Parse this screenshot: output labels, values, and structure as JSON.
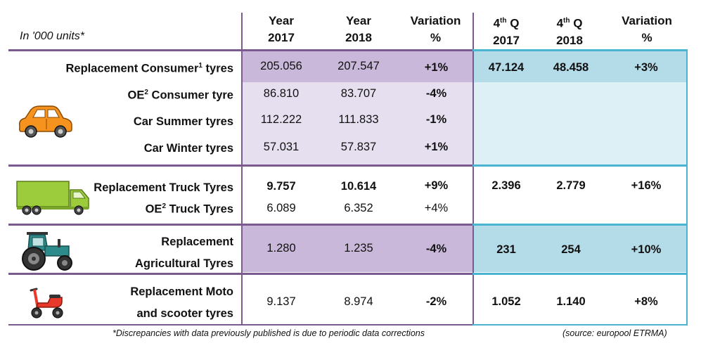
{
  "header": {
    "unit_label": "In '000 units*",
    "col1_line1": "Year",
    "col1_line2": "2017",
    "col2_line1": "Year",
    "col2_line2": "2018",
    "col3_line1": "Variation",
    "col3_line2": "%",
    "col4_line1": "4",
    "col4_sup": "th",
    "col4_line1b": " Q",
    "col4_line2": "2017",
    "col5_line1": "4",
    "col5_sup": "th",
    "col5_line1b": " Q",
    "col5_line2": "2018",
    "col6_line1": "Variation",
    "col6_line2": "%"
  },
  "rows": {
    "rep_consumer": {
      "label": "Replacement Consumer",
      "sup": "1",
      "label_end": " tyres",
      "y2017": "205.056",
      "y2018": "207.547",
      "var": "+1%",
      "q2017": "47.124",
      "q2018": "48.458",
      "qvar": "+3%"
    },
    "oe_consumer": {
      "label": "OE",
      "sup": "2",
      "label_end": " Consumer tyre",
      "y2017": "86.810",
      "y2018": "83.707",
      "var": "-4%"
    },
    "car_summer": {
      "label": "Car Summer tyres",
      "y2017": "112.222",
      "y2018": "111.833",
      "var": "-1%"
    },
    "car_winter": {
      "label": "Car Winter tyres",
      "y2017": "57.031",
      "y2018": "57.837",
      "var": "+1%"
    },
    "rep_truck": {
      "label": "Replacement Truck Tyres",
      "y2017": "9.757",
      "y2018": "10.614",
      "var": "+9%",
      "q2017": "2.396",
      "q2018": "2.779",
      "qvar": "+16%"
    },
    "oe_truck": {
      "label": "OE",
      "sup": "2",
      "label_end": " Truck Tyres",
      "y2017": "6.089",
      "y2018": "6.352",
      "var": "+4%"
    },
    "rep_agri": {
      "label_line1": "Replacement",
      "label_line2": "Agricultural Tyres",
      "y2017": "1.280",
      "y2018": "1.235",
      "var": "-4%",
      "q2017": "231",
      "q2018": "254",
      "qvar": "+10%"
    },
    "rep_moto": {
      "label_line1": "Replacement Moto",
      "label_line2": "and scooter tyres",
      "y2017": "9.137",
      "y2018": "8.974",
      "var": "-2%",
      "q2017": "1.052",
      "q2018": "1.140",
      "qvar": "+8%"
    }
  },
  "icons": [
    "car-icon",
    "truck-icon",
    "tractor-icon",
    "scooter-icon"
  ],
  "colors": {
    "lavender_mid": "#c9b8d9",
    "lavender_light": "#e6dff0",
    "blue_mid": "#b3dbe8",
    "blue_light": "#dcf0f6",
    "car_orange": "#f5931e",
    "truck_green": "#9ccc3c",
    "tractor_teal": "#2e8b8b",
    "scooter_red": "#e8392b"
  },
  "footer": {
    "note": "*Discrepancies with data previously published is due to periodic data corrections",
    "source": "(source: europool ETRMA)"
  }
}
